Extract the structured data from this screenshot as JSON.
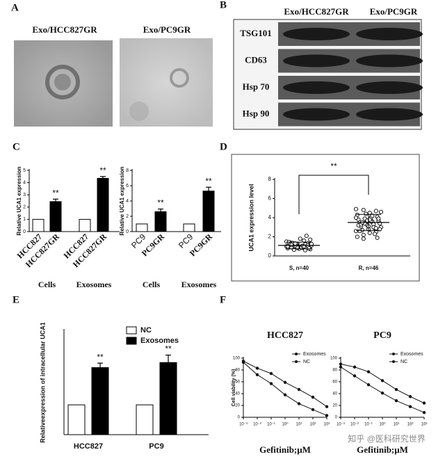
{
  "panel_a": {
    "label": "A",
    "images": [
      "Exo/HCC827GR",
      "Exo/PC9GR"
    ]
  },
  "panel_b": {
    "label": "B",
    "columns": [
      "Exo/HCC827GR",
      "Exo/PC9GR"
    ],
    "rows": [
      "TSG101",
      "CD63",
      "Hsp 70",
      "Hsp 90"
    ]
  },
  "panel_labels": [
    "C",
    "D",
    "E",
    "F"
  ],
  "watermark": "知乎 @医科研究世界",
  "chart_data": [
    {
      "type": "bar",
      "ylabel": "Relative UCA1 expression",
      "categories": [
        "HCC827",
        "HCC827GR",
        "HCC827",
        "HCC827GR"
      ],
      "values": [
        1,
        2.45,
        1,
        4.35
      ],
      "errors": [
        null,
        0.2,
        null,
        0.15
      ],
      "colors": [
        "#ffffff",
        "#000000",
        "#ffffff",
        "#000000"
      ],
      "annotations": [
        null,
        "**",
        null,
        "**"
      ],
      "group_labels": [
        "Cells",
        "Exosomes"
      ],
      "ylim": [
        0,
        5
      ],
      "yticks": [
        0,
        1,
        2,
        3,
        4,
        5
      ]
    },
    {
      "type": "bar",
      "ylabel": "Relative UCA1 expression",
      "categories": [
        "PC9",
        "PC9GR",
        "PC9",
        "PC9GR"
      ],
      "values": [
        1,
        2.6,
        1,
        5.3
      ],
      "errors": [
        null,
        0.35,
        null,
        0.5
      ],
      "colors": [
        "#ffffff",
        "#000000",
        "#ffffff",
        "#000000"
      ],
      "annotations": [
        null,
        "**",
        null,
        "**"
      ],
      "group_labels": [
        "Cells",
        "Exosomes"
      ],
      "ylim": [
        0,
        8
      ],
      "yticks": [
        0,
        2,
        4,
        6,
        8
      ]
    },
    {
      "type": "scatter",
      "ylabel": "UCA1 expression level",
      "categories": [
        "S, n=40",
        "R, n=46"
      ],
      "annotation": "**",
      "points": [
        [
          1.0,
          1.1,
          0.9,
          1.2,
          0.8,
          1.3,
          1.0,
          0.95,
          1.05,
          1.15,
          0.85,
          1.25,
          1.4,
          0.7,
          1.6,
          1.0,
          0.9,
          1.1,
          1.2,
          0.75,
          1.35,
          1.5,
          2.1,
          1.8,
          0.65,
          1.0,
          1.1,
          0.9,
          1.3,
          1.45,
          0.8,
          1.05,
          0.95,
          1.2,
          1.7,
          1.0,
          0.85,
          1.15,
          1.25,
          0.6
        ],
        [
          4.9,
          4.7,
          4.5,
          4.8,
          4.3,
          4.1,
          4.0,
          3.9,
          3.8,
          3.7,
          3.6,
          3.5,
          3.5,
          3.4,
          3.3,
          3.2,
          3.1,
          3.0,
          2.9,
          2.8,
          2.7,
          2.6,
          2.5,
          2.4,
          2.2,
          2.0,
          1.9,
          3.6,
          3.4,
          3.2,
          3.9,
          4.2,
          4.4,
          2.6,
          2.8,
          3.0,
          3.7,
          3.3,
          4.6,
          2.3,
          3.1,
          3.5,
          4.0,
          2.9,
          3.8,
          1.8
        ]
      ],
      "means": [
        1.1,
        3.5
      ],
      "sd": [
        0.35,
        0.85
      ],
      "ylim": [
        0,
        8
      ],
      "yticks": [
        0,
        2,
        4,
        6,
        8
      ]
    },
    {
      "type": "bar",
      "ylabel": "Relativeexpression of intracellular UCA1",
      "categories": [
        "HCC827",
        "PC9"
      ],
      "series": [
        {
          "name": "NC",
          "color": "#ffffff",
          "values": [
            1,
            1
          ]
        },
        {
          "name": "Exosomes",
          "color": "#000000",
          "values": [
            2.25,
            2.42
          ],
          "errors": [
            0.15,
            0.25
          ],
          "annotations": [
            "**",
            "**"
          ]
        }
      ],
      "ylim": [
        0,
        3.5
      ]
    },
    {
      "type": "line",
      "title": "HCC827",
      "ylabel": "Cell viability (%)",
      "xlabel": "Gefitinib;μM",
      "xlog": true,
      "x": [
        0.001,
        0.01,
        0.1,
        1,
        10,
        100,
        1000
      ],
      "xlim": [
        0.001,
        1000
      ],
      "xticks": [
        {
          "value": 0.001,
          "label": "10⁻³"
        },
        {
          "value": 0.01,
          "label": "10⁻²"
        },
        {
          "value": 0.1,
          "label": "10⁻¹"
        },
        {
          "value": 1,
          "label": "10⁰"
        },
        {
          "value": 10,
          "label": "10¹"
        },
        {
          "value": 100,
          "label": "10²"
        },
        {
          "value": 1000,
          "label": "10³"
        }
      ],
      "ylim": [
        0,
        100
      ],
      "yticks": [
        0,
        20,
        40,
        60,
        80,
        100
      ],
      "series": [
        {
          "name": "Exosomes",
          "color": "#111111",
          "values": [
            95,
            83,
            74,
            59,
            47,
            34,
            18
          ]
        },
        {
          "name": "NC",
          "color": "#111111",
          "values": [
            93,
            72,
            57,
            38,
            23,
            13,
            3
          ]
        }
      ]
    },
    {
      "type": "line",
      "title": "PC9",
      "xlabel": "Gefitinib;μM",
      "xlog": true,
      "x": [
        0.001,
        0.01,
        0.1,
        1,
        10,
        100,
        1000
      ],
      "xlim": [
        0.001,
        1000
      ],
      "xticks": [
        {
          "value": 0.001,
          "label": "10⁻³"
        },
        {
          "value": 0.01,
          "label": "10⁻²"
        },
        {
          "value": 0.1,
          "label": "10⁻¹"
        },
        {
          "value": 1,
          "label": "10⁰"
        },
        {
          "value": 10,
          "label": "10¹"
        },
        {
          "value": 100,
          "label": "10²"
        },
        {
          "value": 1000,
          "label": "10³"
        }
      ],
      "ylim": [
        0,
        100
      ],
      "yticks": [
        0,
        20,
        40,
        60,
        80,
        100
      ],
      "series": [
        {
          "name": "Exosomes",
          "color": "#111111",
          "values": [
            90,
            85,
            77,
            62,
            47,
            35,
            24
          ]
        },
        {
          "name": "NC",
          "color": "#111111",
          "values": [
            85,
            70,
            55,
            41,
            28,
            18,
            8
          ]
        }
      ]
    }
  ]
}
